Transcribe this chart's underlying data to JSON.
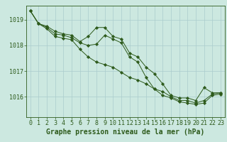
{
  "background_color": "#cce8e0",
  "grid_color": "#aacccc",
  "line_color": "#2d5a1b",
  "marker_color": "#2d5a1b",
  "title": "Graphe pression niveau de la mer (hPa)",
  "title_fontsize": 7,
  "tick_fontsize": 6,
  "xlim": [
    -0.5,
    23.5
  ],
  "ylim": [
    1015.2,
    1019.55
  ],
  "yticks": [
    1016,
    1017,
    1018,
    1019
  ],
  "xticks": [
    0,
    1,
    2,
    3,
    4,
    5,
    6,
    7,
    8,
    9,
    10,
    11,
    12,
    13,
    14,
    15,
    16,
    17,
    18,
    19,
    20,
    21,
    22,
    23
  ],
  "series": [
    {
      "x": [
        0,
        1,
        2,
        3,
        4,
        5,
        6,
        7,
        8,
        9,
        10,
        11,
        12,
        13,
        14,
        15,
        16,
        17,
        18,
        19,
        20,
        21,
        22,
        23
      ],
      "y": [
        1019.35,
        1018.85,
        1018.75,
        1018.55,
        1018.45,
        1018.4,
        1018.15,
        1018.35,
        1018.7,
        1018.7,
        1018.35,
        1018.25,
        1017.7,
        1017.55,
        1017.15,
        1016.9,
        1016.5,
        1016.05,
        1015.95,
        1015.95,
        1015.85,
        1016.35,
        1016.15,
        1016.15
      ]
    },
    {
      "x": [
        0,
        1,
        2,
        3,
        4,
        5,
        6,
        7,
        8,
        9,
        10,
        11,
        12,
        13,
        14,
        15,
        16,
        17,
        18,
        19,
        20,
        21,
        22,
        23
      ],
      "y": [
        1019.35,
        1018.85,
        1018.7,
        1018.45,
        1018.4,
        1018.3,
        1018.1,
        1018.0,
        1018.05,
        1018.4,
        1018.25,
        1018.1,
        1017.55,
        1017.35,
        1016.75,
        1016.3,
        1016.2,
        1016.0,
        1015.85,
        1015.85,
        1015.75,
        1015.85,
        1016.1,
        1016.15
      ]
    },
    {
      "x": [
        0,
        1,
        2,
        3,
        4,
        5,
        6,
        7,
        8,
        9,
        10,
        11,
        12,
        13,
        14,
        15,
        16,
        17,
        18,
        19,
        20,
        21,
        22,
        23
      ],
      "y": [
        1019.35,
        1018.85,
        1018.65,
        1018.35,
        1018.28,
        1018.22,
        1017.85,
        1017.55,
        1017.35,
        1017.25,
        1017.15,
        1016.95,
        1016.75,
        1016.65,
        1016.5,
        1016.3,
        1016.05,
        1015.95,
        1015.8,
        1015.75,
        1015.7,
        1015.75,
        1016.05,
        1016.1
      ]
    }
  ]
}
